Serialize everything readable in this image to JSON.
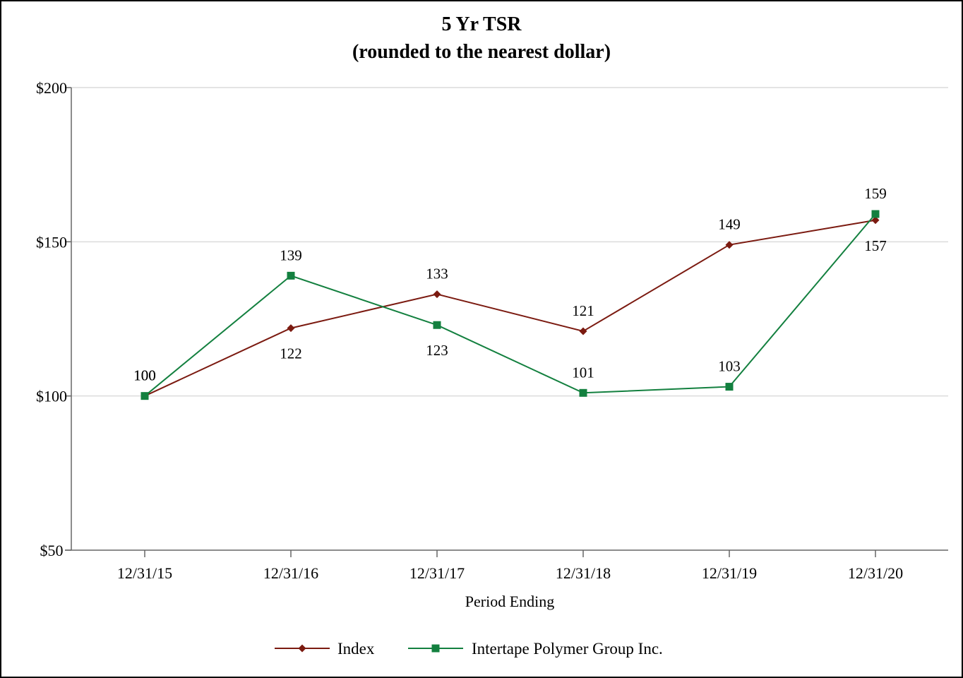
{
  "chart_data": {
    "type": "line",
    "title": "5 Yr TSR",
    "subtitle": "(rounded to the nearest dollar)",
    "xlabel": "Period Ending",
    "ylabel": "",
    "categories": [
      "12/31/15",
      "12/31/16",
      "12/31/17",
      "12/31/18",
      "12/31/19",
      "12/31/20"
    ],
    "ylim": [
      50,
      200
    ],
    "yticks": [
      50,
      100,
      150,
      200
    ],
    "ytick_labels": [
      "$50",
      "$100",
      "$150",
      "$200"
    ],
    "grid": true,
    "legend_position": "bottom",
    "series": [
      {
        "name": "Index",
        "color": "#7b1a10",
        "marker": "diamond",
        "values": [
          100,
          122,
          133,
          121,
          149,
          157
        ],
        "labels": [
          "100",
          "122",
          "133",
          "121",
          "149",
          "157"
        ],
        "label_side": [
          "above",
          "below",
          "above",
          "above",
          "above",
          "below"
        ]
      },
      {
        "name": "Intertape Polymer Group Inc.",
        "color": "#13803f",
        "marker": "square",
        "values": [
          100,
          139,
          123,
          101,
          103,
          159
        ],
        "labels": [
          "100",
          "139",
          "123",
          "101",
          "103",
          "159"
        ],
        "label_side": [
          "above",
          "above",
          "below",
          "above",
          "above",
          "above"
        ]
      }
    ]
  }
}
